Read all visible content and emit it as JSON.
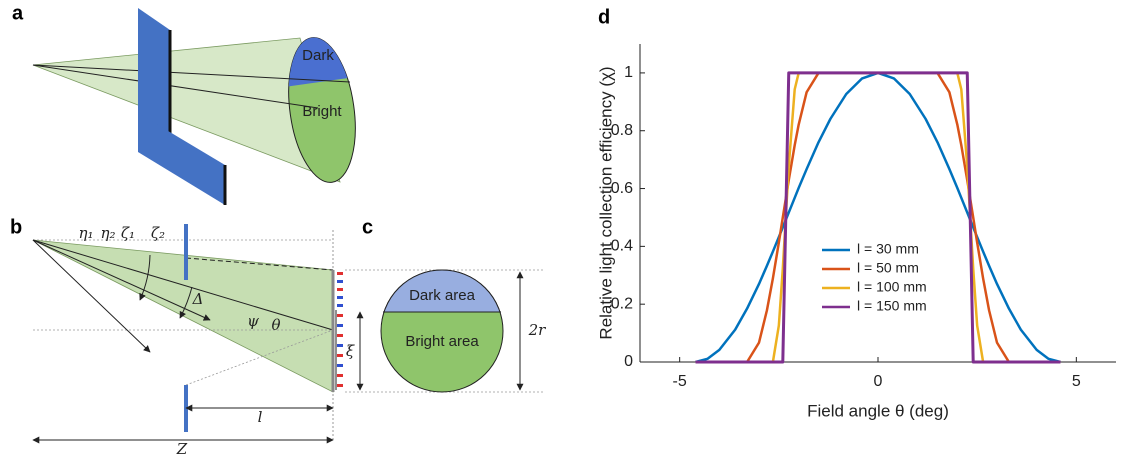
{
  "panels": {
    "a": "a",
    "b": "b",
    "c": "c",
    "d": "d"
  },
  "diagram_a": {
    "dark": "Dark",
    "bright": "Bright"
  },
  "diagram_b": {
    "eta1": "η₁",
    "eta2": "η₂",
    "zeta1": "ζ₁",
    "zeta2": "ζ₂",
    "delta": "Δ",
    "psi": "ψ",
    "theta": "θ",
    "xi": "ξ",
    "l": "l",
    "z": "Z"
  },
  "diagram_c": {
    "dark": "Dark area",
    "bright": "Bright area",
    "diameter": "2r"
  },
  "chart_data": {
    "type": "line",
    "xlabel": "Field angle θ (deg)",
    "ylabel": "Relative light collection efficiency (χ)",
    "x": [
      -4.6,
      -4.3,
      -4.0,
      -3.6,
      -3.3,
      -3.0,
      -2.8,
      -2.65,
      -2.5,
      -2.4,
      -2.25,
      -2.1,
      -2.0,
      -1.8,
      -1.5,
      -1.2,
      -0.8,
      -0.4,
      0,
      0.4,
      0.8,
      1.2,
      1.5,
      1.8,
      2.0,
      2.1,
      2.25,
      2.4,
      2.5,
      2.65,
      2.8,
      3.0,
      3.3,
      3.6,
      4.0,
      4.3,
      4.6
    ],
    "series": [
      {
        "name": "l = 30 mm",
        "color": "#0072bd",
        "values": [
          0,
          0.011,
          0.042,
          0.112,
          0.185,
          0.27,
          0.333,
          0.382,
          0.432,
          0.466,
          0.517,
          0.568,
          0.602,
          0.667,
          0.76,
          0.841,
          0.927,
          0.981,
          1,
          0.981,
          0.927,
          0.841,
          0.76,
          0.667,
          0.602,
          0.568,
          0.517,
          0.466,
          0.432,
          0.382,
          0.333,
          0.27,
          0.185,
          0.112,
          0.042,
          0.011,
          0
        ]
      },
      {
        "name": "l = 50 mm",
        "color": "#d95319",
        "values": [
          0,
          0,
          0,
          0,
          0,
          0.067,
          0.179,
          0.289,
          0.413,
          0.5,
          0.629,
          0.75,
          0.821,
          0.933,
          1,
          1,
          1,
          1,
          1,
          1,
          1,
          1,
          1,
          0.933,
          0.821,
          0.75,
          0.629,
          0.5,
          0.413,
          0.289,
          0.179,
          0.067,
          0,
          0,
          0,
          0,
          0
        ]
      },
      {
        "name": "l = 100 mm",
        "color": "#edb120",
        "values": [
          0,
          0,
          0,
          0,
          0,
          0,
          0,
          0,
          0.126,
          0.323,
          0.677,
          0.943,
          1,
          1,
          1,
          1,
          1,
          1,
          1,
          1,
          1,
          1,
          1,
          1,
          1,
          0.943,
          0.677,
          0.323,
          0.126,
          0,
          0,
          0,
          0,
          0,
          0,
          0,
          0
        ]
      },
      {
        "name": "l = 150 mm",
        "color": "#7e2f8e",
        "values": [
          0,
          0,
          0,
          0,
          0,
          0,
          0,
          0,
          0,
          0,
          1,
          1,
          1,
          1,
          1,
          1,
          1,
          1,
          1,
          1,
          1,
          1,
          1,
          1,
          1,
          1,
          1,
          0,
          0,
          0,
          0,
          0,
          0,
          0,
          0,
          0,
          0
        ]
      }
    ],
    "xlim": [
      -6,
      6
    ],
    "ylim": [
      0,
      1.1
    ],
    "xticks": [
      -5,
      0,
      5
    ],
    "yticks": [
      0,
      0.2,
      0.4,
      0.6,
      0.8,
      1
    ],
    "legend": "center"
  }
}
